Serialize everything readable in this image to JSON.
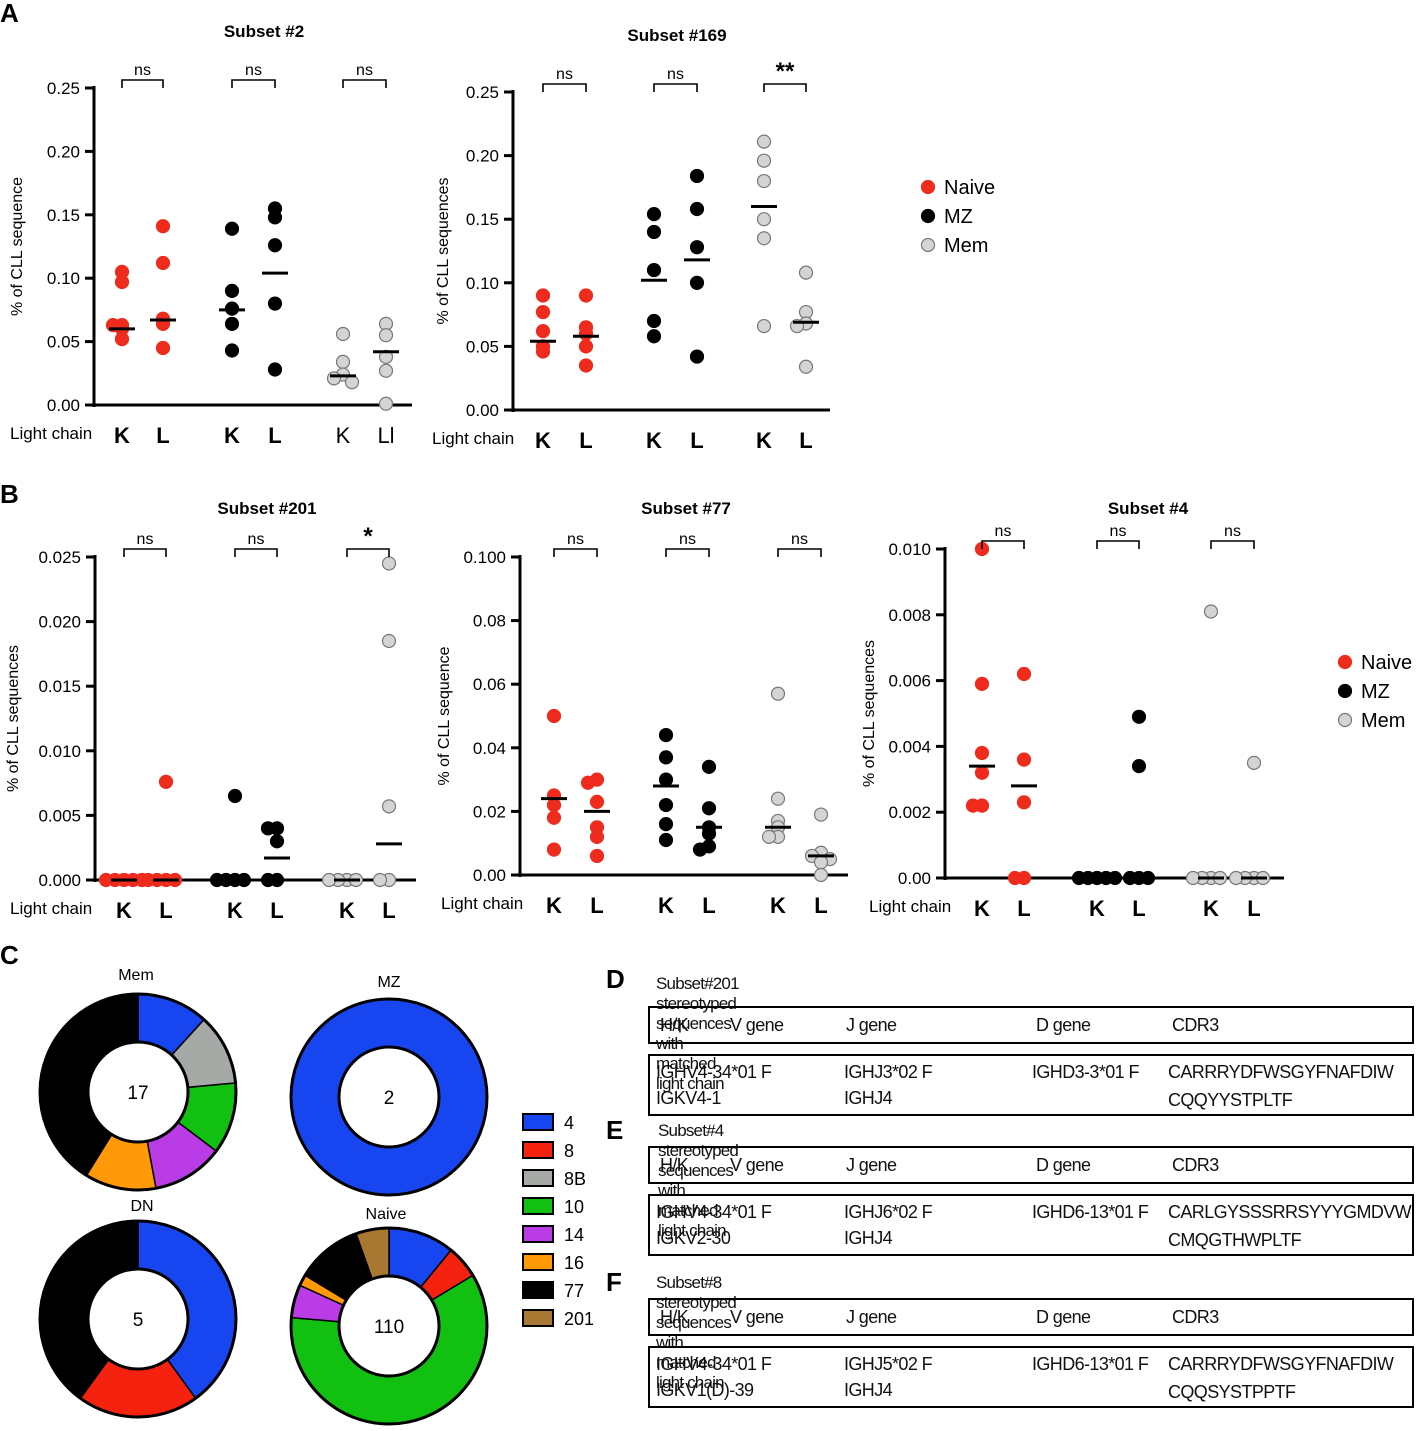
{
  "colors": {
    "naive": "#ee2b1c",
    "mz": "#000000",
    "mem": "#d4d4d4"
  },
  "panel_labels": [
    "A",
    "B",
    "C",
    "D",
    "E",
    "F"
  ],
  "legend": {
    "naive": "Naive",
    "mz": "MZ",
    "mem": "Mem"
  },
  "chart_data": [
    {
      "type": "scatter",
      "title": "Subset #2",
      "ylabel": "% of CLL sequence",
      "xlabel": "Light chain",
      "ylim": [
        0,
        0.25
      ],
      "yticks": [
        "0.00",
        "0.05",
        "0.10",
        "0.15",
        "0.20",
        "0.25"
      ],
      "groups": [
        {
          "series": "naive",
          "label": "K",
          "values": [
            0.105,
            0.097,
            0.063,
            0.063,
            0.06,
            0.052
          ],
          "mean": 0.06
        },
        {
          "series": "naive",
          "label": "L",
          "values": [
            0.141,
            0.112,
            0.068,
            0.064,
            0.045
          ],
          "mean": 0.067
        },
        {
          "series": "mz",
          "label": "K",
          "values": [
            0.139,
            0.09,
            0.076,
            0.064,
            0.043
          ],
          "mean": 0.075
        },
        {
          "series": "mz",
          "label": "L",
          "values": [
            0.155,
            0.148,
            0.126,
            0.08,
            0.028
          ],
          "mean": 0.104
        },
        {
          "series": "mem",
          "label": "K",
          "values": [
            0.056,
            0.034,
            0.024,
            0.021,
            0.018
          ],
          "mean": 0.023
        },
        {
          "series": "mem",
          "label": "Ll",
          "values": [
            0.064,
            0.055,
            0.038,
            0.027,
            0.001
          ],
          "mean": 0.042
        }
      ],
      "sig": [
        "ns",
        "ns",
        "ns"
      ]
    },
    {
      "type": "scatter",
      "title": "Subset #169",
      "ylabel": "% of CLL sequences",
      "xlabel": "Light chain",
      "ylim": [
        0,
        0.25
      ],
      "yticks": [
        "0.00",
        "0.05",
        "0.10",
        "0.15",
        "0.20",
        "0.25"
      ],
      "groups": [
        {
          "series": "naive",
          "label": "K",
          "values": [
            0.09,
            0.077,
            0.062,
            0.05,
            0.046
          ],
          "mean": 0.054
        },
        {
          "series": "naive",
          "label": "L",
          "values": [
            0.09,
            0.065,
            0.06,
            0.05,
            0.035
          ],
          "mean": 0.058
        },
        {
          "series": "mz",
          "label": "K",
          "values": [
            0.154,
            0.14,
            0.11,
            0.07,
            0.058
          ],
          "mean": 0.102
        },
        {
          "series": "mz",
          "label": "L",
          "values": [
            0.184,
            0.158,
            0.128,
            0.1,
            0.042
          ],
          "mean": 0.118
        },
        {
          "series": "mem",
          "label": "K",
          "values": [
            0.211,
            0.196,
            0.18,
            0.15,
            0.135,
            0.066
          ],
          "mean": 0.16
        },
        {
          "series": "mem",
          "label": "L",
          "values": [
            0.108,
            0.077,
            0.068,
            0.066,
            0.034
          ],
          "mean": 0.069
        }
      ],
      "sig": [
        "ns",
        "ns",
        "**"
      ]
    },
    {
      "type": "scatter",
      "title": "Subset #201",
      "ylabel": "% of CLL sequences",
      "xlabel": "Light chain",
      "ylim": [
        0,
        0.025
      ],
      "yticks": [
        "0.000",
        "0.005",
        "0.010",
        "0.015",
        "0.020",
        "0.025"
      ],
      "groups": [
        {
          "series": "naive",
          "label": "K",
          "values": [
            0,
            0,
            0,
            0,
            0
          ],
          "mean": 0
        },
        {
          "series": "naive",
          "label": "L",
          "values": [
            0.0076,
            0,
            0,
            0,
            0
          ],
          "mean": 0
        },
        {
          "series": "mz",
          "label": "K",
          "values": [
            0.0065,
            0,
            0,
            0,
            0
          ],
          "mean": 0
        },
        {
          "series": "mz",
          "label": "L",
          "values": [
            0.004,
            0.004,
            0.003,
            0,
            0
          ],
          "mean": 0.0017
        },
        {
          "series": "mem",
          "label": "K",
          "values": [
            0,
            0,
            0,
            0
          ],
          "mean": 0
        },
        {
          "series": "mem",
          "label": "L",
          "values": [
            0.0245,
            0.0185,
            0.0057,
            0,
            0
          ],
          "mean": 0.0028
        }
      ],
      "sig": [
        "ns",
        "ns",
        "*"
      ]
    },
    {
      "type": "scatter",
      "title": "Subset #77",
      "ylabel": "% of CLL sequence",
      "xlabel": "Light chain",
      "ylim": [
        0,
        0.1
      ],
      "yticks": [
        "0.00",
        "0.02",
        "0.04",
        "0.06",
        "0.08",
        "0.100"
      ],
      "groups": [
        {
          "series": "naive",
          "label": "K",
          "values": [
            0.05,
            0.025,
            0.022,
            0.018,
            0.008
          ],
          "mean": 0.024
        },
        {
          "series": "naive",
          "label": "L",
          "values": [
            0.03,
            0.029,
            0.023,
            0.015,
            0.012,
            0.006
          ],
          "mean": 0.02
        },
        {
          "series": "mz",
          "label": "K",
          "values": [
            0.044,
            0.037,
            0.03,
            0.022,
            0.016,
            0.011
          ],
          "mean": 0.028
        },
        {
          "series": "mz",
          "label": "L",
          "values": [
            0.034,
            0.021,
            0.015,
            0.013,
            0.009,
            0.008
          ],
          "mean": 0.015
        },
        {
          "series": "mem",
          "label": "K",
          "values": [
            0.057,
            0.024,
            0.017,
            0.015,
            0.012,
            0.012
          ],
          "mean": 0.015
        },
        {
          "series": "mem",
          "label": "L",
          "values": [
            0.019,
            0.007,
            0.006,
            0.005,
            0.004,
            0.0
          ],
          "mean": 0.006
        }
      ],
      "sig": [
        "ns",
        "ns",
        "ns"
      ]
    },
    {
      "type": "scatter",
      "title": "Subset #4",
      "ylabel": "% of CLL sequences",
      "xlabel": "Light chain",
      "ylim": [
        0,
        0.01
      ],
      "yticks": [
        "0.00",
        "0.002",
        "0.004",
        "0.006",
        "0.008",
        "0.010"
      ],
      "groups": [
        {
          "series": "naive",
          "label": "K",
          "values": [
            0.01,
            0.0059,
            0.0038,
            0.0032,
            0.0022,
            0.0022
          ],
          "mean": 0.0034
        },
        {
          "series": "naive",
          "label": "L",
          "values": [
            0.0062,
            0.0036,
            0.0023,
            0,
            0
          ],
          "mean": 0.0028
        },
        {
          "series": "mz",
          "label": "K",
          "values": [
            0,
            0,
            0,
            0,
            0
          ],
          "mean": 0
        },
        {
          "series": "mz",
          "label": "L",
          "values": [
            0.0049,
            0.0034,
            0,
            0,
            0
          ],
          "mean": 0
        },
        {
          "series": "mem",
          "label": "K",
          "values": [
            0.0081,
            0,
            0,
            0,
            0
          ],
          "mean": 0
        },
        {
          "series": "mem",
          "label": "L",
          "values": [
            0.0035,
            0,
            0,
            0,
            0
          ],
          "mean": 0
        }
      ],
      "sig": [
        "ns",
        "ns",
        "ns"
      ]
    },
    {
      "type": "pie",
      "donut": true,
      "legend": [
        {
          "label": "4",
          "color": "#1746f0"
        },
        {
          "label": "8",
          "color": "#f4220f"
        },
        {
          "label": "8B",
          "color": "#a6aaa6"
        },
        {
          "label": "10",
          "color": "#11c011"
        },
        {
          "label": "14",
          "color": "#b93ce6"
        },
        {
          "label": "16",
          "color": "#ff9908"
        },
        {
          "label": "77",
          "color": "#000000"
        },
        {
          "label": "201",
          "color": "#a87732"
        }
      ],
      "charts": [
        {
          "title": "Mem",
          "center": "17",
          "slices": [
            {
              "label": "4",
              "value": 2
            },
            {
              "label": "8B",
              "value": 2
            },
            {
              "label": "10",
              "value": 2
            },
            {
              "label": "14",
              "value": 2
            },
            {
              "label": "16",
              "value": 2
            },
            {
              "label": "77",
              "value": 7
            }
          ]
        },
        {
          "title": "MZ",
          "center": "2",
          "slices": [
            {
              "label": "4",
              "value": 2
            }
          ]
        },
        {
          "title": "DN",
          "center": "5",
          "slices": [
            {
              "label": "4",
              "value": 2
            },
            {
              "label": "8",
              "value": 1
            },
            {
              "label": "77",
              "value": 2
            }
          ]
        },
        {
          "title": "Naive",
          "center": "110",
          "slices": [
            {
              "label": "4",
              "value": 12
            },
            {
              "label": "8",
              "value": 6
            },
            {
              "label": "10",
              "value": 66
            },
            {
              "label": "14",
              "value": 6
            },
            {
              "label": "16",
              "value": 2
            },
            {
              "label": "77",
              "value": 12
            },
            {
              "label": "201",
              "value": 6
            }
          ]
        }
      ]
    }
  ],
  "tables": {
    "header": {
      "hk": "H/K",
      "v": "V gene",
      "j": "J gene",
      "d": "D gene",
      "cdr3": "CDR3"
    },
    "D": {
      "title": "Subset#201 stereotyped sequences  with matched light chain",
      "v1": "IGHV4-34*01 F",
      "v2": "IGKV4-1",
      "j1": "IGHJ3*02 F",
      "j2": "IGHJ4",
      "d1": "IGHD3-3*01 F",
      "c1": "CARRRYDFWSGYFNAFDIW",
      "c2": "CQQYYSTPLTF"
    },
    "E": {
      "title": "Subset#4 stereotyped sequences  with matched light chain",
      "v1": "IGHV4-34*01 F",
      "v2": "IGKV2-30",
      "j1": "IGHJ6*02 F",
      "j2": "IGHJ4",
      "d1": "IGHD6-13*01 F",
      "c1": "CARLGYSSSRRSYYYGMDVW",
      "c2": "CMQGTHWPLTF"
    },
    "F": {
      "title": "Subset#8 stereotyped sequences  with matched light chain",
      "v1": "IGHV4-34*01 F",
      "v2": "IGKV1(D)-39",
      "j1": "IGHJ5*02 F",
      "j2": "IGHJ4",
      "d1": "IGHD6-13*01 F",
      "c1": "CARRRYDFWSGYFNAFDIW",
      "c2": "CQQSYSTPPTF"
    }
  }
}
